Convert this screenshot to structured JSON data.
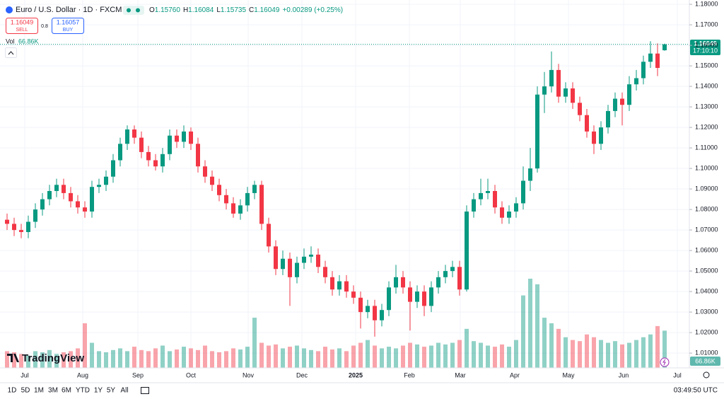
{
  "header": {
    "symbol": "Euro / U.S. Dollar · 1D · FXCM",
    "o_label": "O",
    "o": "1.15760",
    "h_label": "H",
    "h": "1.16084",
    "l_label": "L",
    "l": "1.15735",
    "c_label": "C",
    "c": "1.16049",
    "change": "+0.00289 (+0.25%)"
  },
  "trade": {
    "sell_price": "1.16049",
    "sell_label": "SELL",
    "spread": "0.8",
    "buy_price": "1.16057",
    "buy_label": "BUY"
  },
  "volume_legend": {
    "label": "Vol",
    "value": "66.86K"
  },
  "price_tag": {
    "price": "1.16049",
    "countdown": "17:10:10"
  },
  "volume_tag": "66.86K",
  "watermark": "TradingView",
  "toolbar": {
    "ranges": [
      "1D",
      "5D",
      "1M",
      "3M",
      "6M",
      "YTD",
      "1Y",
      "5Y",
      "All"
    ],
    "clock": "03:49:50 UTC"
  },
  "chart_data": {
    "type": "candlestick",
    "open": [
      1.075,
      1.073,
      1.07,
      1.069,
      1.074,
      1.08,
      1.085,
      1.089,
      1.092,
      1.088,
      1.084,
      1.081,
      1.079,
      1.091,
      1.092,
      1.096,
      1.104,
      1.112,
      1.119,
      1.115,
      1.108,
      1.104,
      1.101,
      1.107,
      1.116,
      1.113,
      1.118,
      1.112,
      1.101,
      1.096,
      1.092,
      1.087,
      1.083,
      1.078,
      1.082,
      1.088,
      1.092,
      1.073,
      1.062,
      1.051,
      1.056,
      1.047,
      1.054,
      1.057,
      1.058,
      1.052,
      1.047,
      1.041,
      1.045,
      1.04,
      1.037,
      1.03,
      1.033,
      1.026,
      1.031,
      1.042,
      1.047,
      1.042,
      1.035,
      1.04,
      1.033,
      1.042,
      1.047,
      1.05,
      1.052,
      1.041,
      1.079,
      1.085,
      1.088,
      1.089,
      1.081,
      1.076,
      1.079,
      1.083,
      1.094,
      1.1,
      1.136,
      1.14,
      1.148,
      1.135,
      1.139,
      1.132,
      1.126,
      1.118,
      1.112,
      1.12,
      1.128,
      1.134,
      1.131,
      1.141,
      1.144,
      1.152,
      1.156,
      1.1576
    ],
    "high": [
      1.078,
      1.076,
      1.073,
      1.077,
      1.083,
      1.088,
      1.092,
      1.095,
      1.095,
      1.091,
      1.087,
      1.084,
      1.094,
      1.095,
      1.099,
      1.107,
      1.115,
      1.121,
      1.121,
      1.118,
      1.111,
      1.107,
      1.11,
      1.119,
      1.119,
      1.121,
      1.12,
      1.115,
      1.104,
      1.099,
      1.095,
      1.09,
      1.086,
      1.085,
      1.091,
      1.094,
      1.094,
      1.076,
      1.065,
      1.06,
      1.059,
      1.057,
      1.061,
      1.062,
      1.061,
      1.055,
      1.05,
      1.048,
      1.048,
      1.043,
      1.04,
      1.036,
      1.036,
      1.034,
      1.045,
      1.053,
      1.05,
      1.045,
      1.043,
      1.043,
      1.045,
      1.05,
      1.053,
      1.055,
      1.055,
      1.082,
      1.088,
      1.095,
      1.095,
      1.092,
      1.084,
      1.082,
      1.086,
      1.101,
      1.11,
      1.14,
      1.147,
      1.157,
      1.151,
      1.142,
      1.142,
      1.135,
      1.129,
      1.121,
      1.123,
      1.131,
      1.137,
      1.137,
      1.145,
      1.148,
      1.155,
      1.162,
      1.161,
      1.16084
    ],
    "low": [
      1.07,
      1.067,
      1.066,
      1.066,
      1.071,
      1.077,
      1.082,
      1.086,
      1.085,
      1.081,
      1.078,
      1.076,
      1.076,
      1.088,
      1.089,
      1.093,
      1.101,
      1.109,
      1.112,
      1.105,
      1.101,
      1.099,
      1.098,
      1.104,
      1.11,
      1.11,
      1.109,
      1.098,
      1.093,
      1.089,
      1.084,
      1.08,
      1.076,
      1.075,
      1.079,
      1.085,
      1.07,
      1.059,
      1.048,
      1.048,
      1.033,
      1.044,
      1.051,
      1.054,
      1.049,
      1.044,
      1.038,
      1.038,
      1.037,
      1.034,
      1.022,
      1.027,
      1.018,
      1.023,
      1.028,
      1.039,
      1.039,
      1.021,
      1.032,
      1.028,
      1.03,
      1.039,
      1.044,
      1.047,
      1.038,
      1.04,
      1.076,
      1.082,
      1.085,
      1.078,
      1.073,
      1.073,
      1.076,
      1.08,
      1.089,
      1.098,
      1.127,
      1.137,
      1.132,
      1.132,
      1.129,
      1.123,
      1.115,
      1.107,
      1.109,
      1.117,
      1.125,
      1.121,
      1.128,
      1.138,
      1.141,
      1.149,
      1.145,
      1.15735
    ],
    "close": [
      1.073,
      1.07,
      1.069,
      1.074,
      1.08,
      1.085,
      1.089,
      1.092,
      1.088,
      1.084,
      1.081,
      1.079,
      1.091,
      1.092,
      1.096,
      1.104,
      1.112,
      1.119,
      1.115,
      1.108,
      1.104,
      1.101,
      1.107,
      1.116,
      1.113,
      1.118,
      1.112,
      1.101,
      1.096,
      1.092,
      1.087,
      1.083,
      1.078,
      1.082,
      1.088,
      1.092,
      1.073,
      1.062,
      1.051,
      1.056,
      1.047,
      1.054,
      1.057,
      1.058,
      1.052,
      1.047,
      1.041,
      1.045,
      1.04,
      1.037,
      1.03,
      1.033,
      1.026,
      1.031,
      1.042,
      1.047,
      1.042,
      1.035,
      1.04,
      1.033,
      1.042,
      1.047,
      1.05,
      1.052,
      1.041,
      1.079,
      1.085,
      1.088,
      1.089,
      1.081,
      1.076,
      1.079,
      1.083,
      1.094,
      1.1,
      1.136,
      1.14,
      1.148,
      1.135,
      1.139,
      1.132,
      1.126,
      1.118,
      1.112,
      1.12,
      1.128,
      1.134,
      1.131,
      1.141,
      1.144,
      1.152,
      1.156,
      1.149,
      1.16049
    ],
    "volume": [
      30000,
      28000,
      25000,
      22000,
      30000,
      28000,
      32000,
      25000,
      28000,
      30000,
      35000,
      80000,
      45000,
      30000,
      28000,
      32000,
      35000,
      30000,
      38000,
      32000,
      30000,
      35000,
      40000,
      30000,
      33000,
      38000,
      35000,
      32000,
      40000,
      30000,
      28000,
      30000,
      35000,
      33000,
      38000,
      90000,
      45000,
      40000,
      42000,
      35000,
      38000,
      40000,
      35000,
      32000,
      30000,
      38000,
      33000,
      35000,
      30000,
      40000,
      45000,
      50000,
      40000,
      35000,
      38000,
      35000,
      40000,
      45000,
      42000,
      38000,
      40000,
      45000,
      42000,
      45000,
      50000,
      70000,
      48000,
      45000,
      40000,
      38000,
      42000,
      38000,
      50000,
      130000,
      160000,
      150000,
      90000,
      80000,
      70000,
      55000,
      50000,
      48000,
      60000,
      55000,
      50000,
      45000,
      48000,
      42000,
      45000,
      50000,
      55000,
      60000,
      75000,
      66860
    ],
    "ylim": [
      1.0028,
      1.1821
    ],
    "yticks": [
      {
        "value": 1.01,
        "label": "1.01000"
      },
      {
        "value": 1.02,
        "label": "1.02000"
      },
      {
        "value": 1.03,
        "label": "1.03000"
      },
      {
        "value": 1.04,
        "label": "1.04000"
      },
      {
        "value": 1.05,
        "label": "1.05000"
      },
      {
        "value": 1.06,
        "label": "1.06000"
      },
      {
        "value": 1.07,
        "label": "1.07000"
      },
      {
        "value": 1.08,
        "label": "1.08000"
      },
      {
        "value": 1.09,
        "label": "1.09000"
      },
      {
        "value": 1.1,
        "label": "1.10000"
      },
      {
        "value": 1.11,
        "label": "1.11000"
      },
      {
        "value": 1.12,
        "label": "1.12000"
      },
      {
        "value": 1.13,
        "label": "1.13000"
      },
      {
        "value": 1.14,
        "label": "1.14000"
      },
      {
        "value": 1.15,
        "label": "1.15000"
      },
      {
        "value": 1.16,
        "label": "1.16000"
      },
      {
        "value": 1.17,
        "label": "1.17000"
      },
      {
        "value": 1.18,
        "label": "1.18000"
      }
    ],
    "vlim": [
      0,
      660000
    ],
    "xlim": [
      -1,
      96.5
    ],
    "xticks": [
      {
        "value": 2.5,
        "label": "Jul"
      },
      {
        "value": 10.7,
        "label": "Aug"
      },
      {
        "value": 18.5,
        "label": "Sep"
      },
      {
        "value": 26,
        "label": "Oct"
      },
      {
        "value": 34.1,
        "label": "Nov"
      },
      {
        "value": 41.7,
        "label": "Dec"
      },
      {
        "value": 49.3,
        "label": "2025"
      },
      {
        "value": 56.9,
        "label": "Feb"
      },
      {
        "value": 64.1,
        "label": "Mar"
      },
      {
        "value": 71.8,
        "label": "Apr"
      },
      {
        "value": 79.4,
        "label": "May"
      },
      {
        "value": 87.2,
        "label": "Jun"
      },
      {
        "value": 94.8,
        "label": "Jul"
      }
    ],
    "up_color": "#089981",
    "down_color": "#f23645",
    "grid": true
  }
}
